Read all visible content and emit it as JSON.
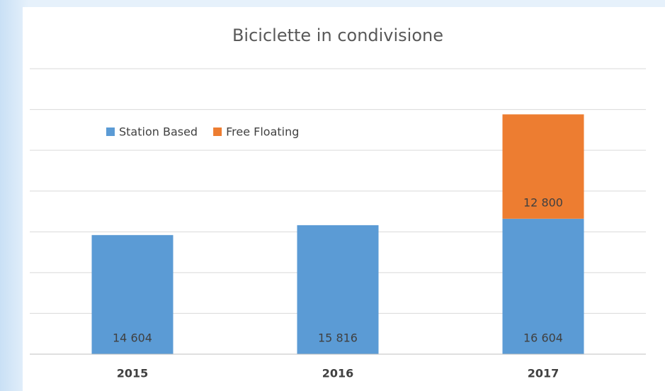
{
  "chart_data": {
    "type": "stacked_bar",
    "title": "Biciclette in condivisione",
    "categories": [
      "2015",
      "2016",
      "2017"
    ],
    "series": [
      {
        "name": "Station Based",
        "color": "#5b9bd5",
        "values": [
          14604,
          15816,
          16604
        ],
        "value_labels": [
          "14 604",
          "15 816",
          "16 604"
        ]
      },
      {
        "name": "Free Floating",
        "color": "#ed7d31",
        "values": [
          null,
          null,
          12800
        ],
        "value_labels": [
          null,
          null,
          "12 800"
        ]
      }
    ],
    "ylim": [
      0,
      35000
    ],
    "yticks": [
      0,
      5000,
      10000,
      15000,
      20000,
      25000,
      30000,
      35000
    ],
    "grid": true,
    "legend": "top-left"
  }
}
